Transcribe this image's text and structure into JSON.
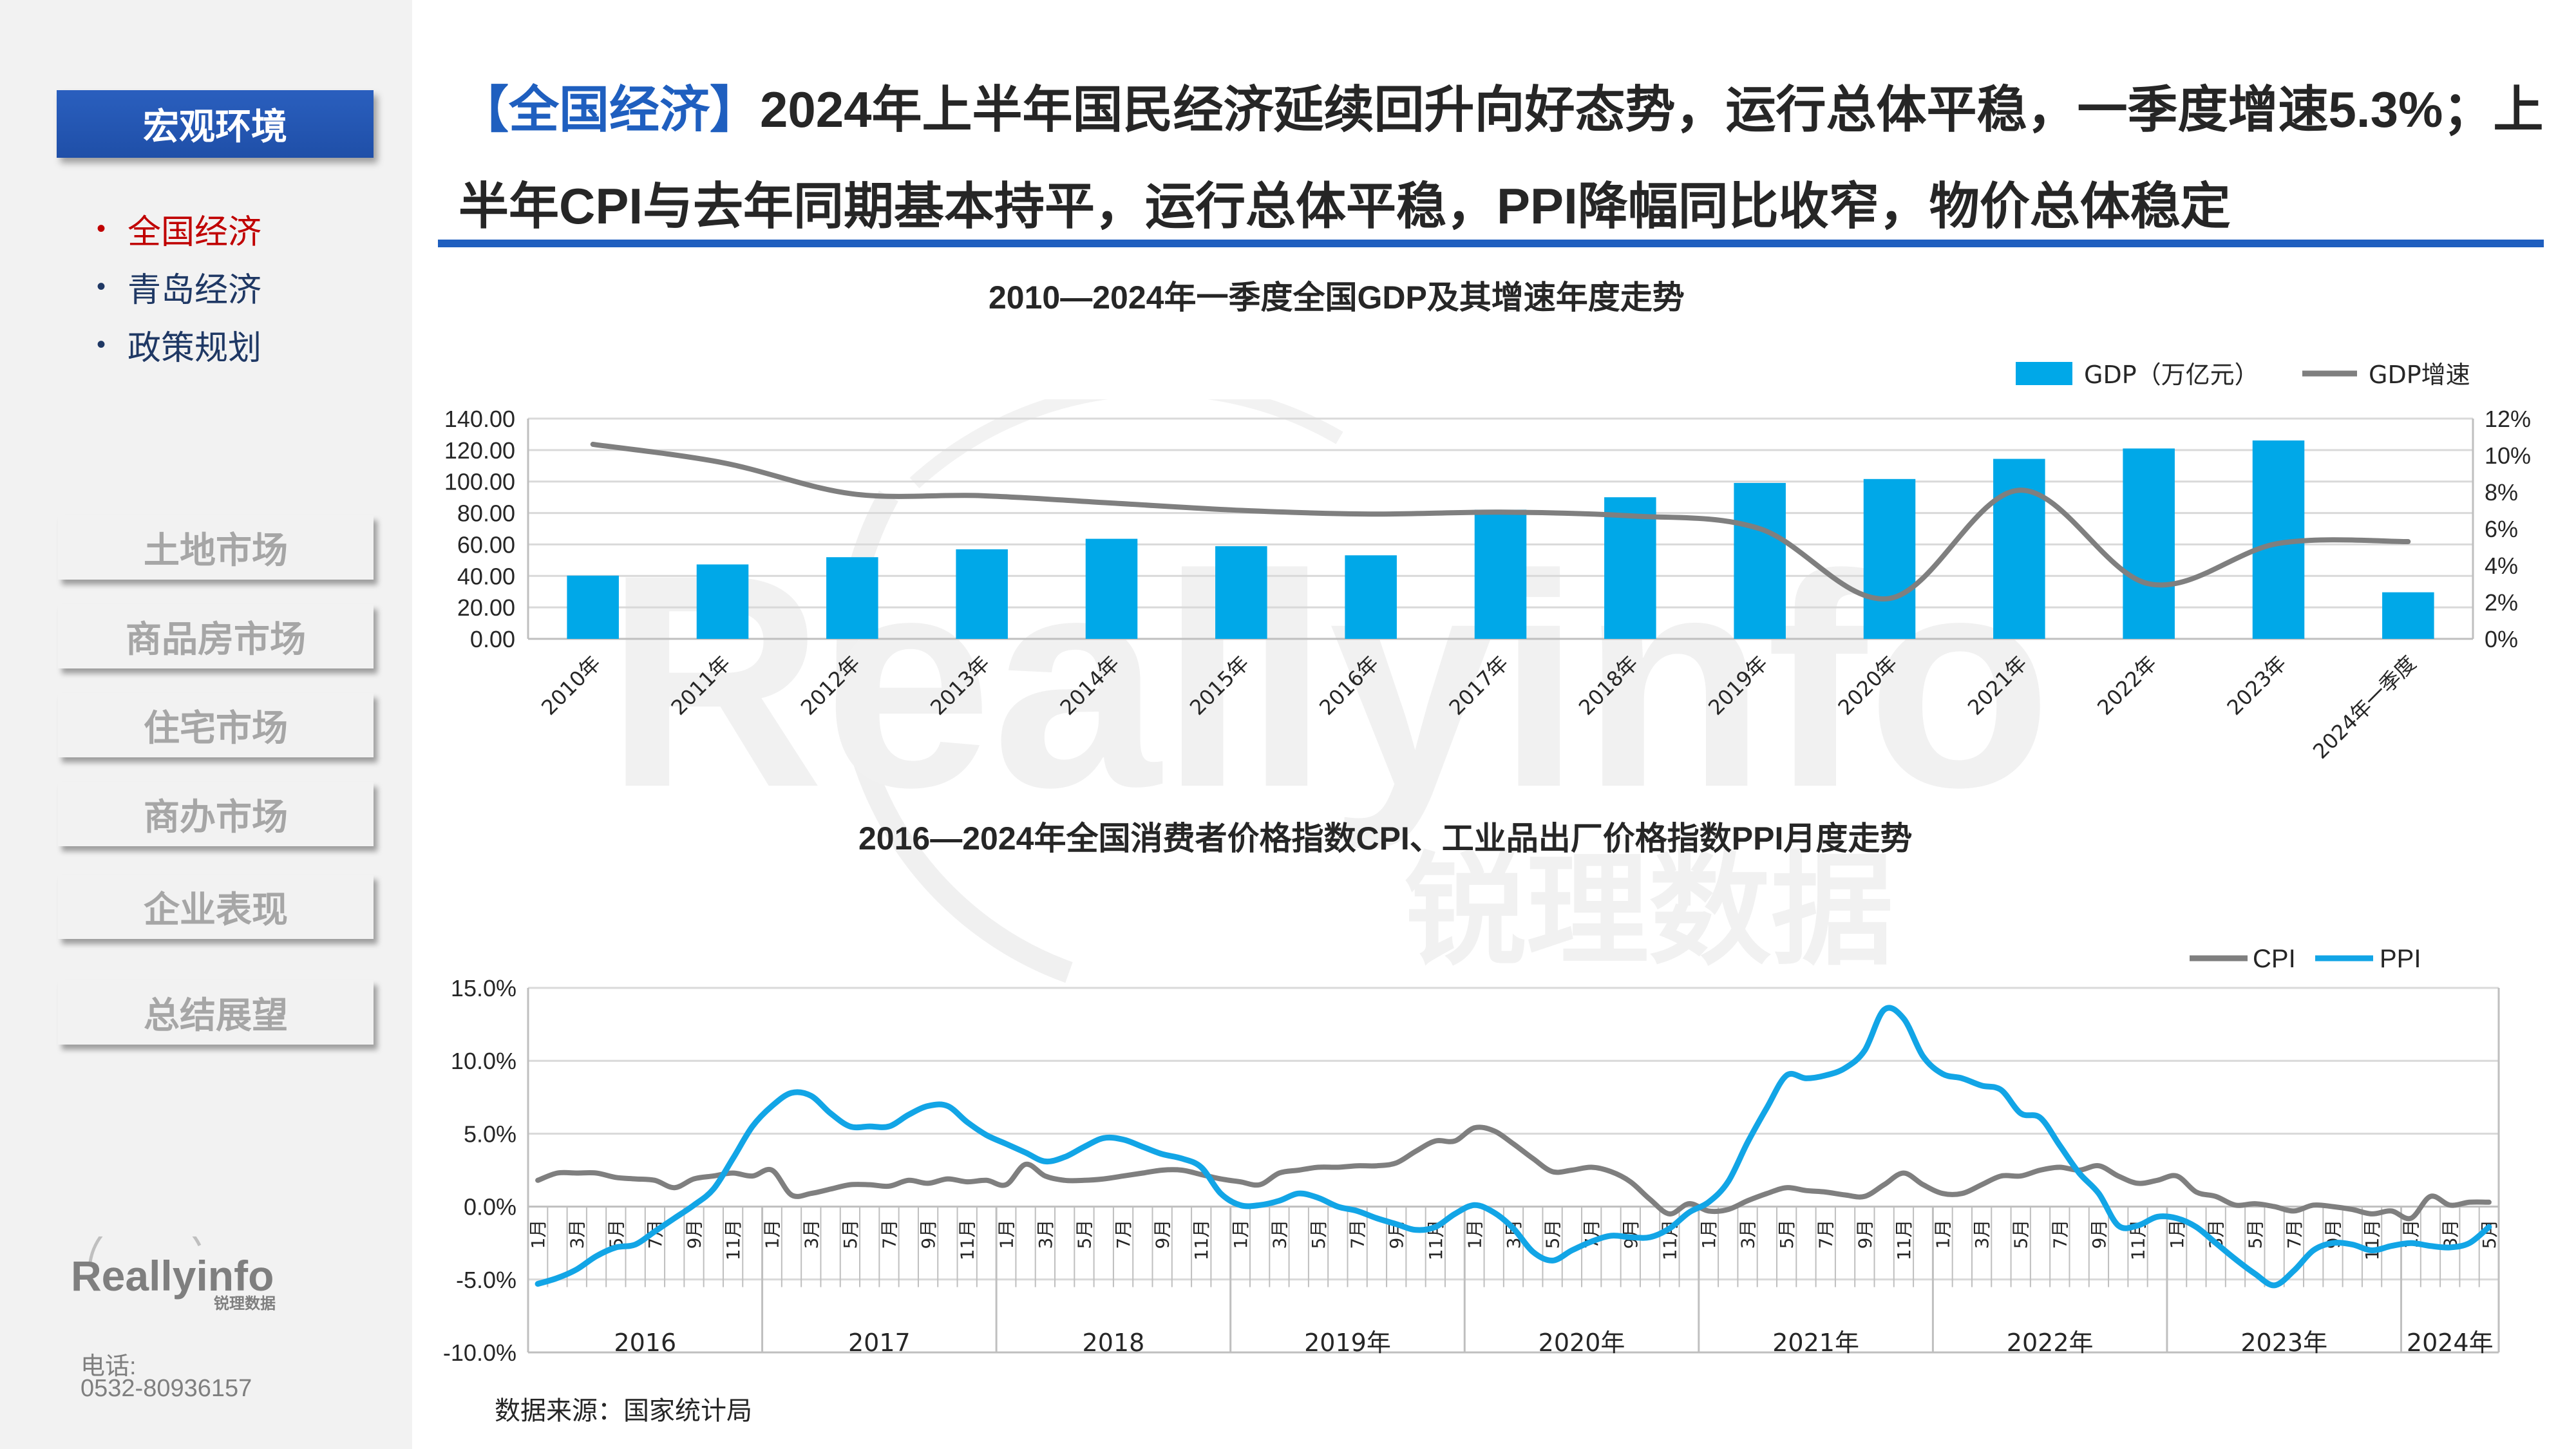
{
  "sidebar": {
    "active_section": "宏观环境",
    "sub_items": [
      "全国经济",
      "青岛经济",
      "政策规划"
    ],
    "sections": [
      "土地市场",
      "商品房市场",
      "住宅市场",
      "商办市场",
      "企业表现",
      "总结展望"
    ],
    "logo_text": "Reallyinfo",
    "logo_subtext": "锐理数据",
    "phone_label": "电话:",
    "phone_number": "0532-80936157"
  },
  "headline": {
    "tag": "【全国经济】",
    "text": "2024年上半年国民经济延续回升向好态势，运行总体平稳，一季度增速5.3%；上半年CPI与去年同期基本持平，运行总体平稳，PPI降幅同比收窄，物价总体稳定"
  },
  "watermark": {
    "brand": "Reallyinfo",
    "cn": "锐理数据"
  },
  "source": "数据来源：国家统计局",
  "colors": {
    "accent": "#1f5fbf",
    "gdp_bar": "#00a8e8",
    "growth_line": "#7f7f7f",
    "cpi_line": "#7f7f7f",
    "ppi_line": "#12a5e6",
    "active_sub": "#c00000"
  },
  "chart_data": [
    {
      "type": "bar",
      "title": "2010—2024年一季度全国GDP及其增速年度走势",
      "categories": [
        "2010年",
        "2011年",
        "2012年",
        "2013年",
        "2014年",
        "2015年",
        "2016年",
        "2017年",
        "2018年",
        "2019年",
        "2020年",
        "2021年",
        "2022年",
        "2023年",
        "2024年一季度"
      ],
      "series": [
        {
          "name": "GDP（万亿元）",
          "type": "bar",
          "axis": "left",
          "values": [
            40.2,
            47.3,
            51.9,
            56.9,
            63.6,
            58.9,
            53.1,
            82.1,
            90.0,
            99.1,
            101.6,
            114.4,
            121.0,
            126.1,
            29.6
          ]
        },
        {
          "name": "GDP增速",
          "type": "line",
          "axis": "right",
          "values": [
            10.6,
            9.6,
            7.9,
            7.8,
            7.4,
            7.0,
            6.8,
            6.9,
            6.7,
            6.0,
            2.2,
            8.1,
            3.0,
            5.2,
            5.3
          ]
        }
      ],
      "y_left": {
        "min": 0,
        "max": 140,
        "step": 20,
        "ticks": [
          "0.00",
          "20.00",
          "40.00",
          "60.00",
          "80.00",
          "100.00",
          "120.00",
          "140.00"
        ]
      },
      "y_right": {
        "min": 0,
        "max": 12,
        "step": 2,
        "ticks": [
          "0%",
          "2%",
          "4%",
          "6%",
          "8%",
          "10%",
          "12%"
        ]
      },
      "legend_position": "top-right",
      "grid": true
    },
    {
      "type": "line",
      "title": "2016—2024年全国消费者价格指数CPI、工业品出厂价格指数PPI月度走势",
      "month_labels": [
        "1月",
        "3月",
        "5月",
        "7月",
        "9月",
        "11月"
      ],
      "year_groups": [
        {
          "label": "2016",
          "months": 12
        },
        {
          "label": "2017",
          "months": 12
        },
        {
          "label": "2018",
          "months": 12
        },
        {
          "label": "2019年",
          "months": 12
        },
        {
          "label": "2020年",
          "months": 12
        },
        {
          "label": "2021年",
          "months": 12
        },
        {
          "label": "2022年",
          "months": 12
        },
        {
          "label": "2023年",
          "months": 12
        },
        {
          "label": "2024年",
          "months": 5
        }
      ],
      "series": [
        {
          "name": "CPI",
          "values": [
            1.8,
            2.3,
            2.3,
            2.3,
            2.0,
            1.9,
            1.8,
            1.3,
            1.9,
            2.1,
            2.3,
            2.1,
            2.5,
            0.8,
            0.9,
            1.2,
            1.5,
            1.5,
            1.4,
            1.8,
            1.6,
            1.9,
            1.7,
            1.8,
            1.5,
            2.9,
            2.1,
            1.8,
            1.8,
            1.9,
            2.1,
            2.3,
            2.5,
            2.5,
            2.2,
            1.9,
            1.7,
            1.5,
            2.3,
            2.5,
            2.7,
            2.7,
            2.8,
            2.8,
            3.0,
            3.8,
            4.5,
            4.5,
            5.4,
            5.2,
            4.3,
            3.3,
            2.4,
            2.5,
            2.7,
            2.4,
            1.7,
            0.5,
            -0.5,
            0.2,
            -0.3,
            -0.2,
            0.4,
            0.9,
            1.3,
            1.1,
            1.0,
            0.8,
            0.7,
            1.5,
            2.3,
            1.5,
            0.9,
            0.9,
            1.5,
            2.1,
            2.1,
            2.5,
            2.7,
            2.5,
            2.8,
            2.1,
            1.6,
            1.8,
            2.1,
            1.0,
            0.7,
            0.1,
            0.2,
            0.0,
            -0.3,
            0.1,
            0.0,
            -0.2,
            -0.5,
            -0.3,
            -0.8,
            0.7,
            0.1,
            0.3,
            0.3
          ]
        },
        {
          "name": "PPI",
          "values": [
            -5.3,
            -4.9,
            -4.3,
            -3.4,
            -2.8,
            -2.6,
            -1.7,
            -0.8,
            0.1,
            1.2,
            3.3,
            5.5,
            6.9,
            7.8,
            7.6,
            6.4,
            5.5,
            5.5,
            5.5,
            6.3,
            6.9,
            6.9,
            5.8,
            4.9,
            4.3,
            3.7,
            3.1,
            3.4,
            4.1,
            4.7,
            4.6,
            4.1,
            3.6,
            3.3,
            2.7,
            0.9,
            0.1,
            0.1,
            0.4,
            0.9,
            0.6,
            0.0,
            -0.3,
            -0.8,
            -1.2,
            -1.6,
            -1.4,
            -0.5,
            0.1,
            -0.4,
            -1.5,
            -3.1,
            -3.7,
            -3.0,
            -2.4,
            -2.0,
            -2.1,
            -2.1,
            -1.5,
            -0.4,
            0.3,
            1.7,
            4.4,
            6.8,
            9.0,
            8.8,
            9.0,
            9.5,
            10.7,
            13.5,
            12.9,
            10.3,
            9.1,
            8.8,
            8.3,
            8.0,
            6.4,
            6.1,
            4.2,
            2.3,
            0.9,
            -1.3,
            -1.3,
            -0.7,
            -0.8,
            -1.4,
            -2.5,
            -3.6,
            -4.6,
            -5.4,
            -4.4,
            -3.0,
            -2.5,
            -2.6,
            -3.0,
            -2.7,
            -2.5,
            -2.7,
            -2.8,
            -2.5,
            -1.4
          ]
        }
      ],
      "y": {
        "min": -10,
        "max": 15,
        "step": 5,
        "ticks": [
          "-10.0%",
          "-5.0%",
          "0.0%",
          "5.0%",
          "10.0%",
          "15.0%"
        ]
      },
      "legend_position": "top-right",
      "grid": true
    }
  ]
}
